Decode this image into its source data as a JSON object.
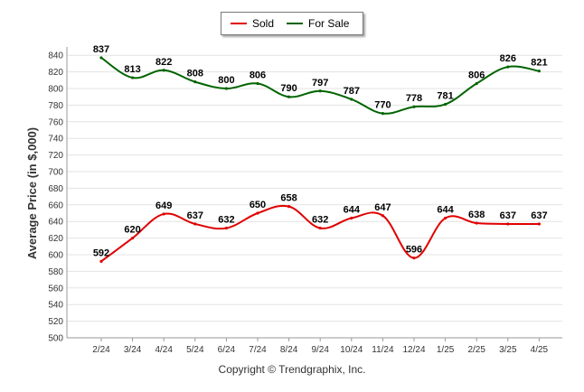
{
  "chart_data": {
    "type": "line",
    "ylabel": "Average Price (in $,000)",
    "xlabel": "",
    "ylim": [
      500,
      850
    ],
    "yticks": [
      500,
      520,
      540,
      560,
      580,
      600,
      620,
      640,
      660,
      680,
      700,
      720,
      740,
      760,
      780,
      800,
      820,
      840
    ],
    "categories": [
      "2/24",
      "3/24",
      "4/24",
      "5/24",
      "6/24",
      "7/24",
      "8/24",
      "9/24",
      "10/24",
      "11/24",
      "12/24",
      "1/25",
      "2/25",
      "3/25",
      "4/25"
    ],
    "series": [
      {
        "name": "Sold",
        "color": "#e00000",
        "values": [
          592,
          620,
          649,
          637,
          632,
          650,
          658,
          632,
          644,
          647,
          596,
          644,
          638,
          637,
          637
        ]
      },
      {
        "name": "For Sale",
        "color": "#006400",
        "values": [
          837,
          813,
          822,
          808,
          800,
          806,
          790,
          797,
          787,
          770,
          778,
          781,
          806,
          826,
          821
        ]
      }
    ],
    "grid": true,
    "legend_position": "top"
  },
  "footer": {
    "copyright": "Copyright © Trendgraphix, Inc."
  }
}
